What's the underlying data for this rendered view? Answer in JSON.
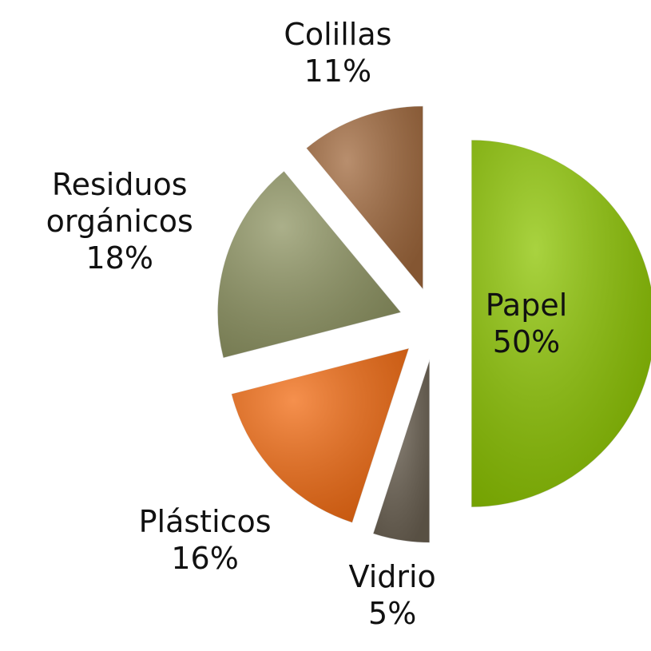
{
  "chart_data": {
    "type": "pie",
    "categories": [
      "Papel",
      "Vidrio",
      "Plásticos",
      "Residuos orgánicos",
      "Colillas"
    ],
    "values": [
      50,
      5,
      16,
      18,
      11
    ],
    "value_labels": [
      "50%",
      "5%",
      "16%",
      "18%",
      "11%"
    ],
    "colors": [
      "#8cc400",
      "#6b6152",
      "#f26b12",
      "#8f9563",
      "#a1693d"
    ]
  }
}
